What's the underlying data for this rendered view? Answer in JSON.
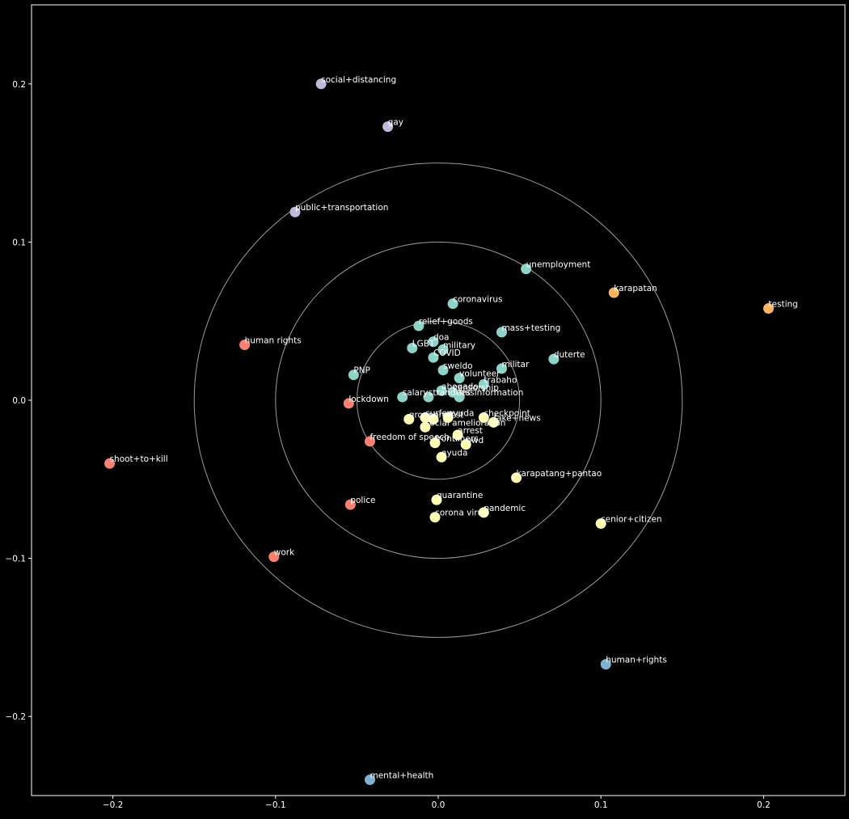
{
  "chart_data": {
    "type": "scatter",
    "title": "",
    "xlabel": "",
    "ylabel": "",
    "xlim": [
      -0.25,
      0.25
    ],
    "ylim": [
      -0.25,
      0.25
    ],
    "x_ticks": [
      -0.2,
      -0.1,
      0.0,
      0.1,
      0.2
    ],
    "y_ticks": [
      -0.2,
      -0.1,
      0.0,
      0.1,
      0.2
    ],
    "x_tick_labels": [
      "−0.2",
      "−0.1",
      "0.0",
      "0.1",
      "0.2"
    ],
    "y_tick_labels": [
      "−0.2",
      "−0.1",
      "0.0",
      "0.1",
      "0.2"
    ],
    "grid": false,
    "background": "#000000",
    "reference_circles": [
      0.05,
      0.1,
      0.15
    ],
    "colors": {
      "teal": "#8dd3c7",
      "yellow": "#ffffb3",
      "lavender": "#bebada",
      "salmon": "#fb8072",
      "blue": "#80b1d3",
      "orange": "#fdb462",
      "circle": "#999999",
      "axis": "#ffffff",
      "label": "#ffffff"
    },
    "series": [
      {
        "color": "lavender",
        "points": [
          {
            "label": "social+distancing",
            "x": -0.072,
            "y": 0.2
          },
          {
            "label": "gay",
            "x": -0.031,
            "y": 0.173
          },
          {
            "label": "public+transportation",
            "x": -0.088,
            "y": 0.119
          }
        ]
      },
      {
        "color": "orange",
        "points": [
          {
            "label": "karapatan",
            "x": 0.108,
            "y": 0.068
          },
          {
            "label": "testing",
            "x": 0.203,
            "y": 0.058
          }
        ]
      },
      {
        "color": "salmon",
        "points": [
          {
            "label": "human rights",
            "x": -0.119,
            "y": 0.035
          },
          {
            "label": "lockdown",
            "x": -0.055,
            "y": -0.002
          },
          {
            "label": "freedom of speech",
            "x": -0.042,
            "y": -0.026
          },
          {
            "label": "shoot+to+kill",
            "x": -0.202,
            "y": -0.04
          },
          {
            "label": "police",
            "x": -0.054,
            "y": -0.066
          },
          {
            "label": "work",
            "x": -0.101,
            "y": -0.099
          }
        ]
      },
      {
        "color": "blue",
        "points": [
          {
            "label": "human+rights",
            "x": 0.103,
            "y": -0.167
          },
          {
            "label": "mental+health",
            "x": -0.042,
            "y": -0.24
          }
        ]
      },
      {
        "color": "teal",
        "points": [
          {
            "label": "unemployment",
            "x": 0.054,
            "y": 0.083
          },
          {
            "label": "coronavirus",
            "x": 0.009,
            "y": 0.061
          },
          {
            "label": "relief+goods",
            "x": -0.012,
            "y": 0.047
          },
          {
            "label": "mass+testing",
            "x": 0.039,
            "y": 0.043
          },
          {
            "label": "doa",
            "x": -0.003,
            "y": 0.037
          },
          {
            "label": "LGBT",
            "x": -0.016,
            "y": 0.033
          },
          {
            "label": "military",
            "x": 0.003,
            "y": 0.032
          },
          {
            "label": "COVID",
            "x": -0.003,
            "y": 0.027
          },
          {
            "label": "duterte",
            "x": 0.071,
            "y": 0.026
          },
          {
            "label": "militar",
            "x": 0.039,
            "y": 0.02
          },
          {
            "label": "sweldo",
            "x": 0.003,
            "y": 0.019
          },
          {
            "label": "PNP",
            "x": -0.052,
            "y": 0.016
          },
          {
            "label": "volunteer",
            "x": 0.013,
            "y": 0.014
          },
          {
            "label": "trabaho",
            "x": 0.028,
            "y": 0.01
          },
          {
            "label": "abogado",
            "x": 0.002,
            "y": 0.006
          },
          {
            "label": "censorship",
            "x": 0.009,
            "y": 0.005
          },
          {
            "label": "salary",
            "x": -0.022,
            "y": 0.002
          },
          {
            "label": "strandees",
            "x": -0.006,
            "y": 0.002
          },
          {
            "label": "misinformation",
            "x": 0.013,
            "y": 0.002
          }
        ]
      },
      {
        "color": "yellow",
        "points": [
          {
            "label": "curfew",
            "x": -0.008,
            "y": -0.011
          },
          {
            "label": "protest",
            "x": -0.003,
            "y": -0.012
          },
          {
            "label": "ayuda",
            "x": 0.006,
            "y": -0.011
          },
          {
            "label": "checkpoint",
            "x": 0.028,
            "y": -0.011
          },
          {
            "label": "fake+news",
            "x": 0.034,
            "y": -0.014
          },
          {
            "label": "group",
            "x": -0.018,
            "y": -0.012
          },
          {
            "label": "social amelioration",
            "x": -0.008,
            "y": -0.017
          },
          {
            "label": "arrest",
            "x": 0.012,
            "y": -0.022
          },
          {
            "label": "pwd",
            "x": 0.017,
            "y": -0.028
          },
          {
            "label": "frontliners",
            "x": -0.002,
            "y": -0.027
          },
          {
            "label": "ayuda",
            "x": 0.002,
            "y": -0.036
          },
          {
            "label": "karapatang+pantao",
            "x": 0.048,
            "y": -0.049
          },
          {
            "label": "quarantine",
            "x": -0.001,
            "y": -0.063
          },
          {
            "label": "pandemic",
            "x": 0.028,
            "y": -0.071
          },
          {
            "label": "corona virus",
            "x": -0.002,
            "y": -0.074
          },
          {
            "label": "senior+citizen",
            "x": 0.1,
            "y": -0.078
          }
        ]
      }
    ]
  }
}
